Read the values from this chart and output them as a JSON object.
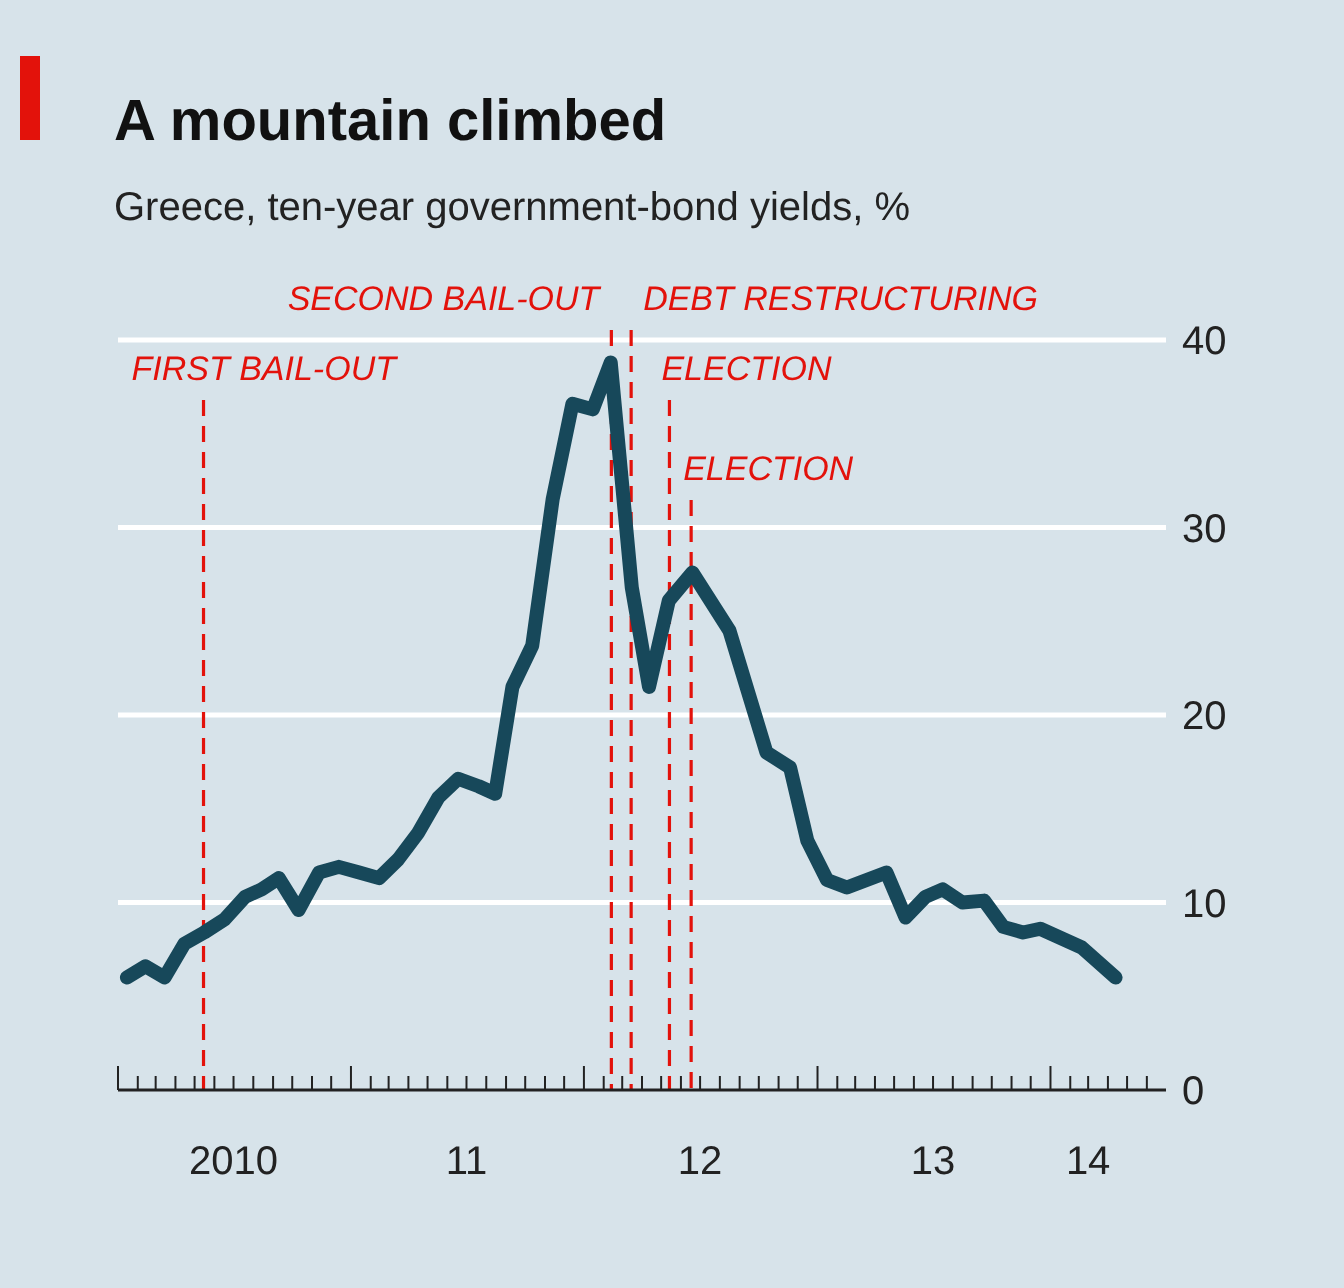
{
  "chart_data": {
    "type": "line",
    "title": "A mountain climbed",
    "subtitle": "Greece, ten-year government-bond yields, %",
    "x": [
      "2010-01-15",
      "2010-02-13",
      "2010-03-15",
      "2010-04-15",
      "2010-05-16",
      "2010-06-17",
      "2010-07-19",
      "2010-08-14",
      "2010-09-10",
      "2010-10-11",
      "2010-11-12",
      "2010-12-13",
      "2011-01-14",
      "2011-02-14",
      "2011-03-16",
      "2011-04-16",
      "2011-05-18",
      "2011-06-18",
      "2011-07-20",
      "2011-08-15",
      "2011-09-11",
      "2011-10-12",
      "2011-11-13",
      "2011-12-14",
      "2012-01-15",
      "2012-02-12",
      "2012-03-16",
      "2012-04-12",
      "2012-05-13",
      "2012-06-19",
      "2012-08-16",
      "2012-10-13",
      "2012-11-19",
      "2012-12-16",
      "2013-01-16",
      "2013-02-16",
      "2013-04-19",
      "2013-05-19",
      "2013-06-19",
      "2013-07-16",
      "2013-08-16",
      "2013-09-19",
      "2013-10-19",
      "2013-11-19",
      "2013-12-16",
      "2014-02-19",
      "2014-04-13"
    ],
    "series": [
      {
        "color": "#17485a",
        "values": [
          6.0,
          6.6,
          6.0,
          7.8,
          8.4,
          9.1,
          10.3,
          10.7,
          11.3,
          9.6,
          11.6,
          11.9,
          11.6,
          11.3,
          12.3,
          13.7,
          15.6,
          16.6,
          16.2,
          15.8,
          21.5,
          23.7,
          31.5,
          36.6,
          36.3,
          38.8,
          26.8,
          21.5,
          26.1,
          27.6,
          24.5,
          18.0,
          17.2,
          13.3,
          11.2,
          10.8,
          11.6,
          9.2,
          10.3,
          10.7,
          10.0,
          10.1,
          8.7,
          8.4,
          8.6,
          7.6,
          6.0
        ]
      }
    ],
    "xlim": [
      "2010-01-01",
      "2014-07-01"
    ],
    "xticks": [
      {
        "value": "2010-01-01",
        "label": null
      },
      {
        "value": "2010-02-01",
        "label": null
      },
      {
        "value": "2010-03-01",
        "label": null
      },
      {
        "value": "2010-04-01",
        "label": null
      },
      {
        "value": "2010-05-01",
        "label": null
      },
      {
        "value": "2010-06-01",
        "label": null
      },
      {
        "value": "2010-07-01",
        "label": "2010"
      },
      {
        "value": "2010-08-01",
        "label": null
      },
      {
        "value": "2010-09-01",
        "label": null
      },
      {
        "value": "2010-10-01",
        "label": null
      },
      {
        "value": "2010-11-01",
        "label": null
      },
      {
        "value": "2010-12-01",
        "label": null
      },
      {
        "value": "2011-01-01",
        "label": null
      },
      {
        "value": "2011-02-01",
        "label": null
      },
      {
        "value": "2011-03-01",
        "label": null
      },
      {
        "value": "2011-04-01",
        "label": null
      },
      {
        "value": "2011-05-01",
        "label": null
      },
      {
        "value": "2011-06-01",
        "label": null
      },
      {
        "value": "2011-07-01",
        "label": "11"
      },
      {
        "value": "2011-08-01",
        "label": null
      },
      {
        "value": "2011-09-01",
        "label": null
      },
      {
        "value": "2011-10-01",
        "label": null
      },
      {
        "value": "2011-11-01",
        "label": null
      },
      {
        "value": "2011-12-01",
        "label": null
      },
      {
        "value": "2012-01-01",
        "label": null
      },
      {
        "value": "2012-02-01",
        "label": null
      },
      {
        "value": "2012-03-01",
        "label": null
      },
      {
        "value": "2012-04-01",
        "label": null
      },
      {
        "value": "2012-05-01",
        "label": null
      },
      {
        "value": "2012-06-01",
        "label": null
      },
      {
        "value": "2012-07-01",
        "label": "12"
      },
      {
        "value": "2012-08-01",
        "label": null
      },
      {
        "value": "2012-09-01",
        "label": null
      },
      {
        "value": "2012-10-01",
        "label": null
      },
      {
        "value": "2012-11-01",
        "label": null
      },
      {
        "value": "2012-12-01",
        "label": null
      },
      {
        "value": "2013-01-01",
        "label": null
      },
      {
        "value": "2013-02-01",
        "label": null
      },
      {
        "value": "2013-03-01",
        "label": null
      },
      {
        "value": "2013-04-01",
        "label": null
      },
      {
        "value": "2013-05-01",
        "label": null
      },
      {
        "value": "2013-06-01",
        "label": null
      },
      {
        "value": "2013-07-01",
        "label": "13"
      },
      {
        "value": "2013-08-01",
        "label": null
      },
      {
        "value": "2013-09-01",
        "label": null
      },
      {
        "value": "2013-10-01",
        "label": null
      },
      {
        "value": "2013-11-01",
        "label": null
      },
      {
        "value": "2013-12-01",
        "label": null
      },
      {
        "value": "2014-01-01",
        "label": null
      },
      {
        "value": "2014-02-01",
        "label": null
      },
      {
        "value": "2014-03-01",
        "label": "14"
      },
      {
        "value": "2014-04-01",
        "label": null
      },
      {
        "value": "2014-05-01",
        "label": null
      },
      {
        "value": "2014-06-01",
        "label": null
      }
    ],
    "ylim": [
      0,
      40
    ],
    "yticks": [
      0,
      10,
      20,
      30,
      40
    ],
    "grid": "y",
    "ref_lines": [
      {
        "axis": "x",
        "value": "2010-05-15",
        "label": "FIRST BAIL-OUT",
        "color": "#e3120b",
        "line_style": "dashed"
      },
      {
        "axis": "x",
        "value": "2012-02-13",
        "label": "SECOND BAIL-OUT",
        "color": "#e3120b",
        "line_style": "dashed"
      },
      {
        "axis": "x",
        "value": "2012-03-15",
        "label": "DEBT RESTRUCTURING",
        "color": "#e3120b",
        "line_style": "dashed"
      },
      {
        "axis": "x",
        "value": "2012-05-14",
        "label": "ELECTION",
        "color": "#e3120b",
        "line_style": "dashed"
      },
      {
        "axis": "x",
        "value": "2012-06-17",
        "label": "ELECTION",
        "color": "#e3120b",
        "line_style": "dashed"
      }
    ],
    "line_style": "solid",
    "marker": "none"
  }
}
